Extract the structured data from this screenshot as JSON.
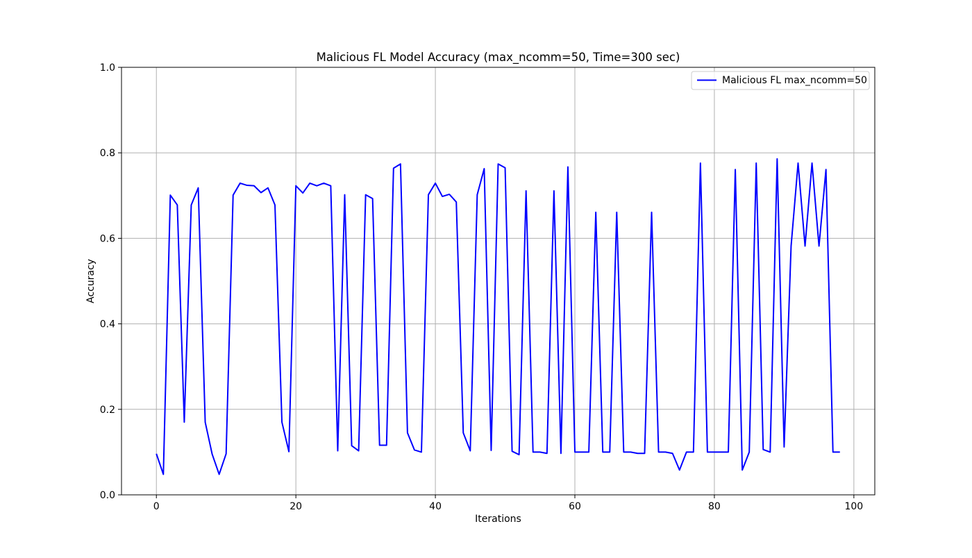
{
  "chart_data": {
    "type": "line",
    "title": "Malicious FL Model Accuracy (max_ncomm=50, Time=300 sec)",
    "xlabel": "Iterations",
    "ylabel": "Accuracy",
    "xlim": [
      -5,
      103
    ],
    "ylim": [
      0.0,
      1.0
    ],
    "xticks": [
      0,
      20,
      40,
      60,
      80,
      100
    ],
    "xtick_labels": [
      "0",
      "20",
      "40",
      "60",
      "80",
      "100"
    ],
    "yticks": [
      0.0,
      0.2,
      0.4,
      0.6,
      0.8,
      1.0
    ],
    "ytick_labels": [
      "0.0",
      "0.2",
      "0.4",
      "0.6",
      "0.8",
      "1.0"
    ],
    "grid": true,
    "legend_position": "top-right",
    "series": [
      {
        "name": "Malicious FL max_ncomm=50",
        "color": "#0000ff",
        "x": [
          0,
          1,
          2,
          3,
          4,
          5,
          6,
          7,
          8,
          9,
          10,
          11,
          12,
          13,
          14,
          15,
          16,
          17,
          18,
          19,
          20,
          21,
          22,
          23,
          24,
          25,
          26,
          27,
          28,
          29,
          30,
          31,
          32,
          33,
          34,
          35,
          36,
          37,
          38,
          39,
          40,
          41,
          42,
          43,
          44,
          45,
          46,
          47,
          48,
          49,
          50,
          51,
          52,
          53,
          54,
          55,
          56,
          57,
          58,
          59,
          60,
          61,
          62,
          63,
          64,
          65,
          66,
          67,
          68,
          69,
          70,
          71,
          72,
          73,
          74,
          75,
          76,
          77,
          78,
          79,
          80,
          81,
          82,
          83,
          84,
          85,
          86,
          87,
          88,
          89,
          90,
          91,
          92,
          93,
          94,
          95,
          96,
          97,
          98
        ],
        "y": [
          0.096,
          0.048,
          0.701,
          0.678,
          0.17,
          0.678,
          0.718,
          0.17,
          0.095,
          0.048,
          0.096,
          0.701,
          0.729,
          0.724,
          0.723,
          0.707,
          0.718,
          0.678,
          0.17,
          0.101,
          0.723,
          0.706,
          0.729,
          0.723,
          0.729,
          0.723,
          0.103,
          0.702,
          0.115,
          0.103,
          0.702,
          0.693,
          0.116,
          0.116,
          0.764,
          0.774,
          0.145,
          0.105,
          0.1,
          0.702,
          0.729,
          0.698,
          0.703,
          0.685,
          0.145,
          0.103,
          0.702,
          0.763,
          0.104,
          0.774,
          0.765,
          0.102,
          0.094,
          0.711,
          0.1,
          0.1,
          0.097,
          0.711,
          0.097,
          0.767,
          0.1,
          0.1,
          0.1,
          0.661,
          0.1,
          0.1,
          0.661,
          0.1,
          0.1,
          0.097,
          0.097,
          0.661,
          0.1,
          0.1,
          0.097,
          0.058,
          0.1,
          0.1,
          0.776,
          0.1,
          0.1,
          0.1,
          0.1,
          0.761,
          0.058,
          0.1,
          0.776,
          0.106,
          0.1,
          0.786,
          0.112,
          0.582,
          0.776,
          0.582,
          0.776,
          0.582,
          0.761,
          0.1,
          0.1
        ]
      }
    ]
  }
}
